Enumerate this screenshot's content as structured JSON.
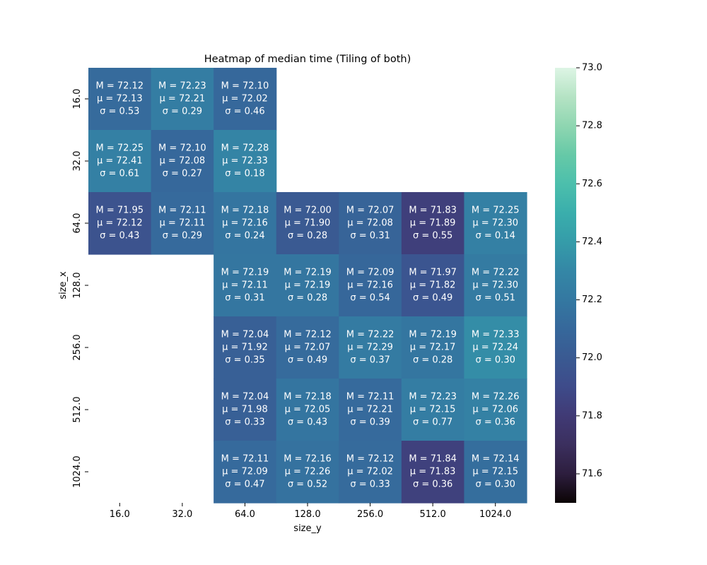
{
  "chart_data": {
    "type": "heatmap",
    "title": "Heatmap of median time (Tiling of both)",
    "xlabel": "size_y",
    "ylabel": "size_x",
    "x_categories": [
      "16.0",
      "32.0",
      "64.0",
      "128.0",
      "256.0",
      "512.0",
      "1024.0"
    ],
    "y_categories": [
      "16.0",
      "32.0",
      "64.0",
      "128.0",
      "256.0",
      "512.0",
      "1024.0"
    ],
    "label_prefixes": {
      "median": "M = ",
      "mean": "μ = ",
      "std": "σ = "
    },
    "cells": [
      [
        {
          "median": "72.12",
          "mean": "72.13",
          "std": "0.53"
        },
        {
          "median": "72.23",
          "mean": "72.21",
          "std": "0.29"
        },
        {
          "median": "72.10",
          "mean": "72.02",
          "std": "0.46"
        },
        null,
        null,
        null,
        null
      ],
      [
        {
          "median": "72.25",
          "mean": "72.41",
          "std": "0.61"
        },
        {
          "median": "72.10",
          "mean": "72.08",
          "std": "0.27"
        },
        {
          "median": "72.28",
          "mean": "72.33",
          "std": "0.18"
        },
        null,
        null,
        null,
        null
      ],
      [
        {
          "median": "71.95",
          "mean": "72.12",
          "std": "0.43"
        },
        {
          "median": "72.11",
          "mean": "72.11",
          "std": "0.29"
        },
        {
          "median": "72.18",
          "mean": "72.16",
          "std": "0.24"
        },
        {
          "median": "72.00",
          "mean": "71.90",
          "std": "0.28"
        },
        {
          "median": "72.07",
          "mean": "72.08",
          "std": "0.31"
        },
        {
          "median": "71.83",
          "mean": "71.89",
          "std": "0.55"
        },
        {
          "median": "72.25",
          "mean": "72.30",
          "std": "0.14"
        }
      ],
      [
        null,
        null,
        {
          "median": "72.19",
          "mean": "72.11",
          "std": "0.31"
        },
        {
          "median": "72.19",
          "mean": "72.19",
          "std": "0.28"
        },
        {
          "median": "72.09",
          "mean": "72.16",
          "std": "0.54"
        },
        {
          "median": "71.97",
          "mean": "71.82",
          "std": "0.49"
        },
        {
          "median": "72.22",
          "mean": "72.30",
          "std": "0.51"
        }
      ],
      [
        null,
        null,
        {
          "median": "72.04",
          "mean": "71.92",
          "std": "0.35"
        },
        {
          "median": "72.12",
          "mean": "72.07",
          "std": "0.49"
        },
        {
          "median": "72.22",
          "mean": "72.29",
          "std": "0.37"
        },
        {
          "median": "72.19",
          "mean": "72.17",
          "std": "0.28"
        },
        {
          "median": "72.33",
          "mean": "72.24",
          "std": "0.30"
        }
      ],
      [
        null,
        null,
        {
          "median": "72.04",
          "mean": "71.98",
          "std": "0.33"
        },
        {
          "median": "72.18",
          "mean": "72.05",
          "std": "0.43"
        },
        {
          "median": "72.11",
          "mean": "72.21",
          "std": "0.39"
        },
        {
          "median": "72.23",
          "mean": "72.15",
          "std": "0.77"
        },
        {
          "median": "72.26",
          "mean": "72.06",
          "std": "0.36"
        }
      ],
      [
        null,
        null,
        {
          "median": "72.11",
          "mean": "72.09",
          "std": "0.47"
        },
        {
          "median": "72.16",
          "mean": "72.26",
          "std": "0.52"
        },
        {
          "median": "72.12",
          "mean": "72.02",
          "std": "0.33"
        },
        {
          "median": "71.84",
          "mean": "71.83",
          "std": "0.36"
        },
        {
          "median": "72.14",
          "mean": "72.15",
          "std": "0.30"
        }
      ]
    ],
    "colorbar": {
      "range": [
        71.5,
        73.0
      ],
      "ticks": [
        "71.6",
        "71.8",
        "72.0",
        "72.2",
        "72.4",
        "72.6",
        "72.8",
        "73.0"
      ],
      "colormap": "mako"
    },
    "colors": {
      "colormap_stops": [
        "#0b0405",
        "#2d1e3e",
        "#3b2f5e",
        "#403a75",
        "#3e4b8a",
        "#3a5a92",
        "#36689b",
        "#3478a1",
        "#3487a6",
        "#359ca9",
        "#3aaeac",
        "#4cbfac",
        "#66c9a7",
        "#8fd6b1",
        "#b5e3c4",
        "#def5e5"
      ],
      "text": "#ffffff",
      "axis_text": "#000000"
    }
  }
}
